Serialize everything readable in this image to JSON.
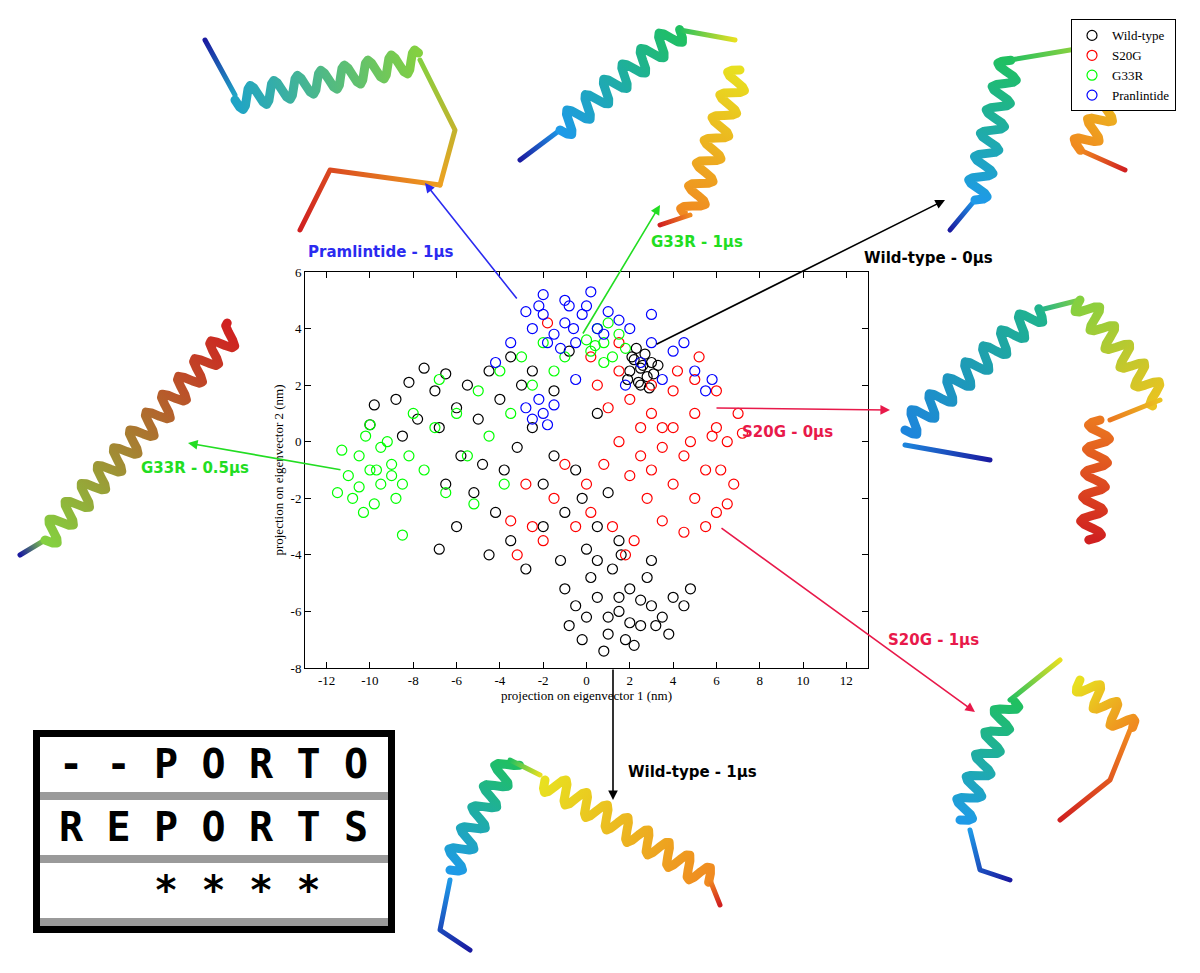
{
  "chart_data": {
    "type": "scatter",
    "x_label": "projection on eigenvector 1 (nm)",
    "y_label": "projection on eigenvector 2 (nm)",
    "xlim": [
      -13,
      13
    ],
    "ylim": [
      -8,
      6
    ],
    "xticks": [
      -12,
      -10,
      -8,
      -6,
      -4,
      -2,
      0,
      2,
      4,
      6,
      8,
      10,
      12
    ],
    "yticks": [
      -8,
      -6,
      -4,
      -2,
      0,
      2,
      4,
      6
    ],
    "grid": false,
    "legend": "top right",
    "series": [
      {
        "name": "Wild-type",
        "color": "#000000",
        "marker": "open circle",
        "x": [
          2.5,
          2.2,
          2.8,
          3.0,
          2.4,
          2.0,
          2.7,
          3.1,
          2.3,
          2.9,
          2.6,
          1.9,
          3.3,
          2.5,
          2.1,
          -8.2,
          -7.5,
          -8.8,
          -7.0,
          -6.5,
          -6.0,
          -5.5,
          -7.8,
          -8.5,
          -6.8,
          -5.0,
          -4.5,
          -4.0,
          -3.5,
          -3.0,
          -5.8,
          -6.5,
          -5.2,
          -4.8,
          -4.2,
          -3.8,
          -3.2,
          -2.5,
          -2.0,
          -1.5,
          -4.5,
          -3.5,
          -2.8,
          -2.0,
          -1.0,
          -0.5,
          0.5,
          1.0,
          0.0,
          -1.2,
          -6.8,
          -6.0,
          -9.8,
          -10.0,
          -2.5,
          -1.5,
          0.5,
          -0.2,
          1.5,
          -0.8,
          1.5,
          0.5,
          2.5,
          1.0,
          2.0,
          3.0,
          0.0,
          1.8,
          3.5,
          -0.5,
          4.0,
          2.8,
          1.2,
          0.2,
          -0.8,
          2.2,
          3.8,
          4.5,
          0.8,
          1.5,
          2.5,
          1.0,
          2.0,
          3.2,
          -0.2,
          4.8,
          0.5,
          1.6,
          3.0,
          -1.0
        ],
        "y": [
          2.6,
          2.9,
          2.3,
          2.8,
          2.1,
          2.5,
          3.1,
          2.4,
          3.3,
          1.9,
          2.7,
          2.2,
          2.7,
          2.0,
          3.0,
          2.1,
          2.6,
          1.5,
          1.8,
          2.4,
          1.2,
          2.0,
          0.8,
          0.2,
          0.5,
          0.8,
          2.5,
          1.5,
          3.0,
          2.0,
          -0.5,
          -1.5,
          -1.8,
          -0.8,
          -2.5,
          -1.0,
          -0.2,
          0.5,
          -1.5,
          -0.5,
          -4.0,
          -3.5,
          -4.5,
          -3.0,
          -2.5,
          -1.0,
          -3.0,
          -1.8,
          -3.8,
          -4.2,
          -3.8,
          -3.0,
          1.3,
          0.6,
          2.5,
          1.8,
          1.0,
          -2.0,
          -3.5,
          3.2,
          -6.0,
          -5.5,
          -6.5,
          -6.8,
          -5.2,
          -5.8,
          -6.2,
          -7.0,
          -6.2,
          -5.8,
          -5.5,
          -4.8,
          -4.5,
          -4.8,
          -6.5,
          -7.2,
          -6.8,
          -5.8,
          -7.4,
          -5.5,
          -5.6,
          -6.2,
          -6.4,
          -6.5,
          -7.0,
          -5.2,
          -4.2,
          -4.0,
          -4.2,
          -5.2
        ]
      },
      {
        "name": "S20G",
        "color": "#ff0000",
        "marker": "open circle",
        "x": [
          2.0,
          3.0,
          4.0,
          5.0,
          6.0,
          1.5,
          2.5,
          3.5,
          4.5,
          5.5,
          6.5,
          7.0,
          6.8,
          6.0,
          5.5,
          4.5,
          3.5,
          2.8,
          1.0,
          0.5,
          1.5,
          3.0,
          4.0,
          5.0,
          6.0,
          2.0,
          4.0,
          5.0,
          6.2,
          7.2,
          0.8,
          0.0,
          -1.0,
          -1.5,
          -2.0,
          -0.5,
          0.2,
          -2.8,
          -3.5,
          1.2,
          2.2,
          -1.8,
          1.5,
          0.2,
          3.5,
          4.8,
          5.8,
          2.5,
          6.5,
          3.0,
          4.2,
          5.2,
          -2.5,
          -3.2,
          1.8
        ],
        "y": [
          1.5,
          1.0,
          0.5,
          1.0,
          0.5,
          0.0,
          -0.5,
          -0.2,
          -0.5,
          -1.0,
          0.0,
          1.0,
          -1.5,
          -2.5,
          -3.0,
          -3.2,
          -2.8,
          -2.0,
          1.2,
          2.0,
          2.5,
          2.0,
          1.8,
          2.2,
          1.8,
          -1.2,
          -1.5,
          -2.0,
          -1.0,
          0.3,
          -0.8,
          -1.5,
          -0.8,
          -2.0,
          -3.5,
          -3.0,
          -2.5,
          -1.5,
          -2.8,
          -3.0,
          -3.5,
          4.2,
          3.5,
          3.0,
          0.5,
          0.0,
          0.2,
          0.5,
          -2.2,
          -1.0,
          2.5,
          3.0,
          -3.0,
          -4.0,
          -4.0
        ]
      },
      {
        "name": "G33R",
        "color": "#00ff00",
        "marker": "open circle",
        "x": [
          -10.0,
          -10.5,
          -9.5,
          -11.0,
          -9.0,
          -10.2,
          -10.8,
          -9.8,
          -9.2,
          -11.3,
          -8.5,
          -10.0,
          -9.5,
          -10.5,
          -8.8,
          -11.5,
          -9.0,
          -10.3,
          -8.2,
          -9.7,
          0.8,
          0.2,
          1.2,
          0.5,
          1.5,
          0.0,
          1.8,
          0.8,
          1.0,
          0.4,
          -7.5,
          -7.0,
          -6.5,
          -6.0,
          -5.5,
          -5.0,
          -4.5,
          -4.0,
          -3.5,
          -3.0,
          -2.5,
          -2.0,
          -1.5,
          -1.0,
          -6.8,
          -8.0,
          -5.2,
          -3.8,
          -8.5
        ],
        "y": [
          -1.0,
          -0.5,
          -1.5,
          -1.2,
          -0.8,
          0.2,
          -2.0,
          -2.2,
          0.0,
          -0.3,
          -1.5,
          0.6,
          -0.2,
          -1.6,
          -2.0,
          -1.8,
          -1.2,
          -2.5,
          -0.5,
          -1.0,
          3.5,
          3.2,
          3.0,
          4.0,
          3.8,
          3.6,
          3.3,
          2.8,
          4.2,
          3.4,
          -1.0,
          0.5,
          -1.8,
          1.0,
          -0.5,
          1.8,
          0.2,
          2.5,
          1.0,
          3.0,
          2.0,
          3.5,
          2.5,
          3.0,
          2.2,
          1.0,
          -2.2,
          -1.5,
          -3.3
        ]
      },
      {
        "name": "Pranlintide",
        "color": "#0000ff",
        "marker": "open circle",
        "x": [
          -1.0,
          -2.0,
          0.0,
          -1.5,
          -0.5,
          -2.5,
          0.5,
          -1.0,
          -2.0,
          -0.2,
          1.0,
          -2.8,
          -1.8,
          0.8,
          -0.8,
          1.5,
          -1.2,
          -2.2,
          0.2,
          -0.6,
          -2.0,
          -2.5,
          -1.5,
          -2.2,
          -1.8,
          -2.8,
          2.0,
          3.0,
          4.0,
          5.0,
          5.5,
          3.5,
          2.5,
          4.5,
          1.8,
          -3.5,
          -4.2,
          -0.5,
          3.0,
          5.8
        ],
        "y": [
          4.2,
          4.5,
          4.8,
          3.8,
          3.5,
          4.0,
          4.0,
          5.0,
          5.2,
          4.5,
          4.6,
          4.6,
          3.5,
          3.8,
          4.8,
          4.3,
          3.3,
          4.8,
          5.3,
          4.0,
          1.0,
          0.8,
          1.3,
          1.5,
          0.6,
          1.2,
          4.0,
          3.5,
          3.2,
          2.5,
          1.8,
          2.2,
          2.8,
          3.5,
          2.0,
          3.5,
          2.8,
          2.2,
          4.5,
          2.2
        ]
      }
    ],
    "annotations": [
      {
        "text": "Pramlintide - 1μs",
        "color": "#2b2bf0"
      },
      {
        "text": "G33R - 1μs",
        "color": "#22dd22"
      },
      {
        "text": "Wild-type - 0μs",
        "color": "#000000"
      },
      {
        "text": "S20G - 0μs",
        "color": "#e8194a"
      },
      {
        "text": "S20G - 1μs",
        "color": "#e8194a"
      },
      {
        "text": "Wild-type - 1μs",
        "color": "#000000"
      },
      {
        "text": "G33R - 0.5μs",
        "color": "#22dd22"
      }
    ]
  },
  "badge": {
    "rows": [
      "- - P O R T O",
      "R E P O R T S",
      "* * * *"
    ]
  }
}
